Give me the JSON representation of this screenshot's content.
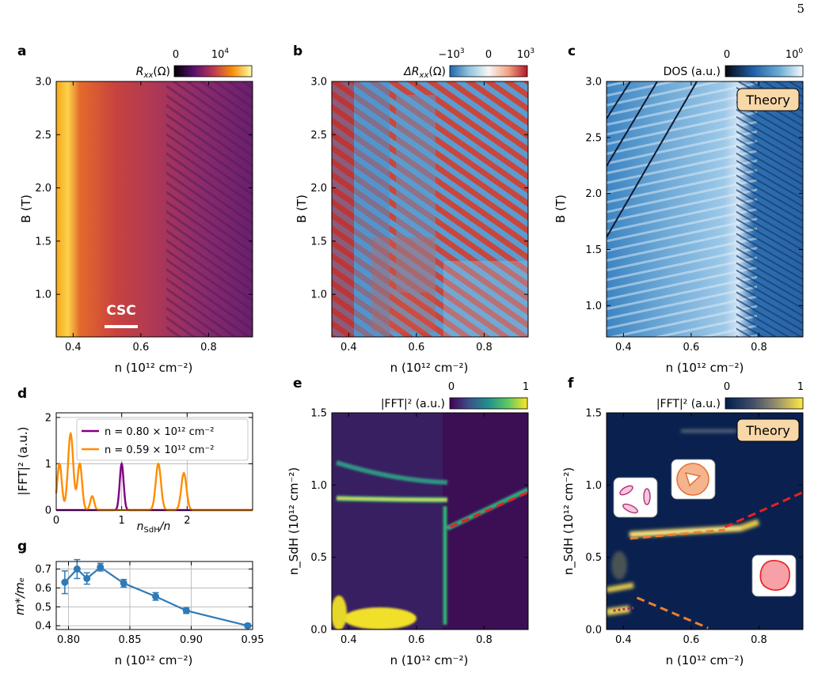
{
  "page_number": "5",
  "panels": {
    "a": {
      "letter": "a",
      "colorbar_label": "R",
      "colorbar_label_sub": "xx",
      "colorbar_label_unit": "(Ω)",
      "colorbar_ticks": [
        "0",
        "10"
      ],
      "colorbar_tick_exp": "4",
      "annotation": "CSC",
      "cmap": "inferno"
    },
    "b": {
      "letter": "b",
      "colorbar_label": "ΔR",
      "colorbar_label_sub": "xx",
      "colorbar_label_unit": "(Ω)",
      "colorbar_ticks": [
        "−10",
        "0",
        "10"
      ],
      "colorbar_tick_exp": "3",
      "cmap": "RdBu_r"
    },
    "c": {
      "letter": "c",
      "colorbar_label": "DOS (a.u.)",
      "colorbar_ticks": [
        "0",
        "10"
      ],
      "colorbar_tick_exp": "0",
      "badge": "Theory",
      "cmap": "Blues_r"
    },
    "d": {
      "letter": "d",
      "ylabel": "|FFT|² (a.u.)",
      "xlabel_main": "n",
      "xlabel_sub": "SdH",
      "xlabel_tail": "/n",
      "legend": [
        {
          "label": "n = 0.80 × 10¹² cm⁻²",
          "color": "#800080"
        },
        {
          "label": "n = 0.59 × 10¹² cm⁻²",
          "color": "#ff8c00"
        }
      ]
    },
    "e": {
      "letter": "e",
      "colorbar_label": "|FFT|² (a.u.)",
      "colorbar_ticks": [
        "0",
        "1"
      ],
      "cmap": "viridis"
    },
    "f": {
      "letter": "f",
      "colorbar_label": "|FFT|² (a.u.)",
      "colorbar_ticks": [
        "0",
        "1"
      ],
      "badge": "Theory",
      "cmap": "cividis"
    },
    "g": {
      "letter": "g",
      "ylabel": "m*/mₑ"
    }
  },
  "axis_labels": {
    "n_density": "n (10¹² cm⁻²)",
    "field": "B (T)",
    "n_sdh": "n_SdH (10¹² cm⁻²)"
  },
  "chart_data": [
    {
      "id": "a",
      "type": "heatmap",
      "xlabel": "n (10¹² cm⁻²)",
      "ylabel": "B (T)",
      "xlim": [
        0.35,
        0.93
      ],
      "ylim": [
        0.6,
        3.0
      ],
      "xticks": [
        0.4,
        0.6,
        0.8
      ],
      "yticks": [
        1.0,
        1.5,
        2.0,
        2.5,
        3.0
      ]
    },
    {
      "id": "b",
      "type": "heatmap",
      "xlabel": "n (10¹² cm⁻²)",
      "ylabel": "B (T)",
      "xlim": [
        0.35,
        0.93
      ],
      "ylim": [
        0.6,
        3.0
      ],
      "xticks": [
        0.4,
        0.6,
        0.8
      ],
      "yticks": [
        1.0,
        1.5,
        2.0,
        2.5,
        3.0
      ]
    },
    {
      "id": "c",
      "type": "heatmap",
      "xlabel": "n (10¹² cm⁻²)",
      "ylabel": "B (T)",
      "xlim": [
        0.35,
        0.93
      ],
      "ylim": [
        0.72,
        3.0
      ],
      "xticks": [
        0.4,
        0.6,
        0.8
      ],
      "yticks": [
        1.0,
        1.5,
        2.0,
        2.5,
        3.0
      ]
    },
    {
      "id": "d",
      "type": "line",
      "xlim": [
        0,
        3
      ],
      "ylim": [
        0,
        2.1
      ],
      "xticks": [
        0,
        1,
        2
      ],
      "yticks": [
        0,
        1,
        2
      ],
      "grid": true,
      "legend": "top-right",
      "series": [
        {
          "name": "n = 0.80 × 10¹² cm⁻²",
          "color": "#800080",
          "peaks": [
            {
              "x": 1.0,
              "y": 1.0,
              "w": 0.03
            }
          ]
        },
        {
          "name": "n = 0.59 × 10¹² cm⁻²",
          "color": "#ff8c00",
          "peaks": [
            {
              "x": 0.05,
              "y": 1.0,
              "w": 0.035
            },
            {
              "x": 0.22,
              "y": 1.65,
              "w": 0.04
            },
            {
              "x": 0.36,
              "y": 1.0,
              "w": 0.035
            },
            {
              "x": 0.55,
              "y": 0.3,
              "w": 0.03
            },
            {
              "x": 1.56,
              "y": 1.0,
              "w": 0.04
            },
            {
              "x": 1.95,
              "y": 0.8,
              "w": 0.04
            }
          ]
        }
      ]
    },
    {
      "id": "e",
      "type": "heatmap",
      "xlabel": "n (10¹² cm⁻²)",
      "ylabel": "n_SdH (10¹² cm⁻²)",
      "xlim": [
        0.35,
        0.93
      ],
      "ylim": [
        0,
        1.5
      ],
      "xticks": [
        0.4,
        0.6,
        0.8
      ],
      "yticks": [
        0.0,
        0.5,
        1.0,
        1.5
      ],
      "dashed_line": {
        "color": "#e8211e",
        "x": [
          0.7,
          0.93
        ],
        "y": [
          0.71,
          0.95
        ]
      }
    },
    {
      "id": "f",
      "type": "heatmap",
      "xlabel": "n (10¹² cm⁻²)",
      "ylabel": "n_SdH (10¹² cm⁻²)",
      "xlim": [
        0.35,
        0.93
      ],
      "ylim": [
        0,
        1.5
      ],
      "xticks": [
        0.4,
        0.6,
        0.8
      ],
      "yticks": [
        0.0,
        0.5,
        1.0,
        1.5
      ],
      "dashed_lines": [
        {
          "color": "#e8211e",
          "x": [
            0.7,
            0.93
          ],
          "y": [
            0.71,
            0.95
          ]
        },
        {
          "color": "#f07f2a",
          "x": [
            0.42,
            0.7
          ],
          "y": [
            0.63,
            0.69
          ]
        },
        {
          "color": "#f07f2a",
          "x": [
            0.44,
            0.65
          ],
          "y": [
            0.22,
            0.01
          ]
        },
        {
          "color": "#b03070",
          "x": [
            0.37,
            0.43
          ],
          "y": [
            0.13,
            0.15
          ]
        }
      ]
    },
    {
      "id": "g",
      "type": "scatter",
      "xlabel": "n (10¹² cm⁻²)",
      "ylabel": "m*/mₑ",
      "xlim": [
        0.79,
        0.95
      ],
      "ylim": [
        0.38,
        0.74
      ],
      "xticks": [
        0.8,
        0.85,
        0.9,
        0.95
      ],
      "yticks": [
        0.4,
        0.5,
        0.6,
        0.7
      ],
      "grid": true,
      "color": "#2f7ab6",
      "x": [
        0.797,
        0.807,
        0.815,
        0.826,
        0.845,
        0.871,
        0.896,
        0.946
      ],
      "y": [
        0.63,
        0.7,
        0.65,
        0.71,
        0.625,
        0.555,
        0.48,
        0.4
      ],
      "yerr": [
        0.06,
        0.05,
        0.03,
        0.02,
        0.02,
        0.02,
        0.015,
        0.01
      ]
    }
  ]
}
